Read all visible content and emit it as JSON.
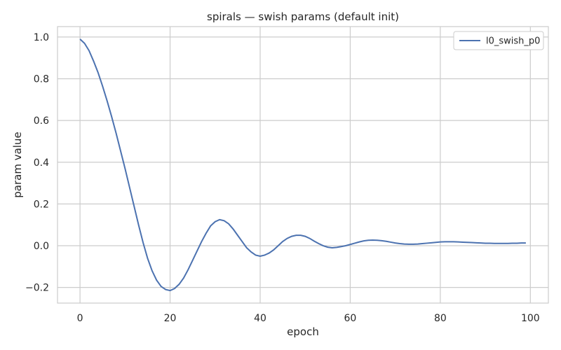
{
  "chart_data": {
    "type": "line",
    "title": "spirals — swish params (default init)",
    "xlabel": "epoch",
    "ylabel": "param value",
    "xlim": [
      -5,
      104
    ],
    "ylim": [
      -0.275,
      1.05
    ],
    "xticks": [
      0,
      20,
      40,
      60,
      80,
      100
    ],
    "xtick_labels": [
      "0",
      "20",
      "40",
      "60",
      "80",
      "100"
    ],
    "yticks": [
      -0.2,
      0.0,
      0.2,
      0.4,
      0.6,
      0.8,
      1.0
    ],
    "ytick_labels": [
      "−0.2",
      "0.0",
      "0.2",
      "0.4",
      "0.6",
      "0.8",
      "1.0"
    ],
    "grid": true,
    "legend_position": "top-right",
    "series": [
      {
        "name": "l0_swish_p0",
        "color": "#4c72b0",
        "x": [
          0,
          1,
          2,
          3,
          4,
          5,
          6,
          7,
          8,
          9,
          10,
          11,
          12,
          13,
          14,
          15,
          16,
          17,
          18,
          19,
          20,
          21,
          22,
          23,
          24,
          25,
          26,
          27,
          28,
          29,
          30,
          31,
          32,
          33,
          34,
          35,
          36,
          37,
          38,
          39,
          40,
          41,
          42,
          43,
          44,
          45,
          46,
          47,
          48,
          49,
          50,
          51,
          52,
          53,
          54,
          55,
          56,
          57,
          58,
          59,
          60,
          61,
          62,
          63,
          64,
          65,
          66,
          67,
          68,
          69,
          70,
          71,
          72,
          73,
          74,
          75,
          76,
          77,
          78,
          79,
          80,
          81,
          82,
          83,
          84,
          85,
          86,
          87,
          88,
          89,
          90,
          91,
          92,
          93,
          94,
          95,
          96,
          97,
          98,
          99
        ],
        "y": [
          0.99,
          0.97,
          0.935,
          0.885,
          0.83,
          0.765,
          0.695,
          0.62,
          0.54,
          0.455,
          0.37,
          0.28,
          0.19,
          0.1,
          0.015,
          -0.06,
          -0.12,
          -0.165,
          -0.195,
          -0.21,
          -0.215,
          -0.205,
          -0.185,
          -0.155,
          -0.115,
          -0.07,
          -0.025,
          0.02,
          0.06,
          0.095,
          0.115,
          0.125,
          0.12,
          0.105,
          0.08,
          0.05,
          0.02,
          -0.01,
          -0.03,
          -0.045,
          -0.05,
          -0.045,
          -0.035,
          -0.02,
          0.0,
          0.02,
          0.035,
          0.045,
          0.05,
          0.05,
          0.045,
          0.035,
          0.022,
          0.01,
          0.0,
          -0.007,
          -0.01,
          -0.008,
          -0.004,
          0.0,
          0.006,
          0.012,
          0.018,
          0.023,
          0.026,
          0.027,
          0.026,
          0.024,
          0.021,
          0.017,
          0.013,
          0.01,
          0.008,
          0.007,
          0.007,
          0.008,
          0.01,
          0.012,
          0.014,
          0.016,
          0.018,
          0.019,
          0.019,
          0.019,
          0.018,
          0.017,
          0.016,
          0.015,
          0.014,
          0.013,
          0.012,
          0.012,
          0.011,
          0.011,
          0.011,
          0.011,
          0.012,
          0.012,
          0.013,
          0.013
        ]
      }
    ]
  }
}
